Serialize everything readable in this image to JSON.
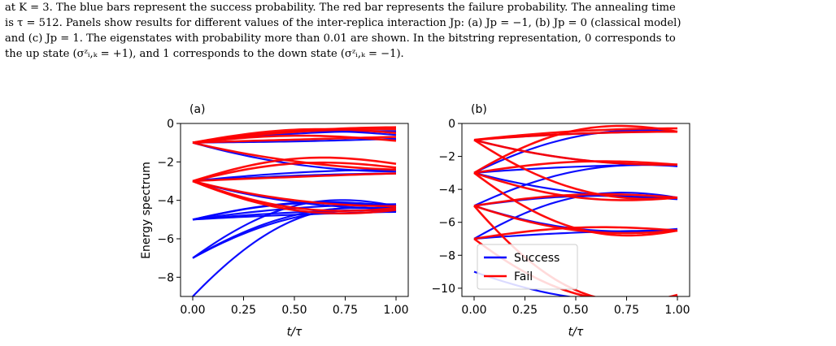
{
  "caption": {
    "lines": [
      "at K = 3. The blue bars represent the success probability. The red bar represents the failure probability. The annealing time",
      "is τ = 512. Panels show results for different values of the inter-replica interaction Jp: (a) Jp = −1, (b) Jp = 0 (classical model)",
      "and (c) Jp = 1. The eigenstates with probability more than 0.01 are shown. In the bitstring representation, 0 corresponds to",
      "the up state (σᶻᵢ,ₖ = +1), and 1 corresponds to the down state (σᶻᵢ,ₖ = −1)."
    ]
  },
  "chart_data": [
    {
      "type": "line",
      "panel_label": "(a)",
      "xlabel": "t/τ",
      "ylabel": "Energy spectrum",
      "xlim": [
        -0.06,
        1.06
      ],
      "ylim": [
        -9,
        0
      ],
      "xticks": [
        0.0,
        0.25,
        0.5,
        0.75,
        1.0
      ],
      "xtick_labels": [
        "0.00",
        "0.25",
        "0.50",
        "0.75",
        "1.00"
      ],
      "yticks": [
        0,
        -2,
        -4,
        -6,
        -8
      ],
      "ytick_labels": [
        "0",
        "−2",
        "−4",
        "−6",
        "−8"
      ],
      "series": [
        {
          "color": "#0000ff",
          "level_groups": [
            {
              "y0": -9,
              "ends": [
                -4.6
              ]
            },
            {
              "y0": -7,
              "ends": [
                -4.5,
                -4.3,
                -4.6
              ]
            },
            {
              "y0": -5,
              "ends": [
                -4.5,
                -4.3,
                -4.6,
                -4.4,
                -4.2
              ]
            },
            {
              "y0": -3,
              "ends": [
                -2.6,
                -4.4,
                -2.4
              ]
            },
            {
              "y0": -1,
              "ends": [
                -0.4,
                -0.6,
                -0.8,
                -2.5
              ]
            }
          ]
        },
        {
          "color": "#ff0000",
          "level_groups": [
            {
              "y0": -3,
              "ends": [
                -4.4,
                -4.3,
                -4.5,
                -2.3,
                -2.6,
                -2.1
              ]
            },
            {
              "y0": -1,
              "ends": [
                -0.3,
                -0.5,
                -0.7,
                -0.9,
                -0.2,
                -2.4
              ]
            }
          ]
        }
      ],
      "grid": false
    },
    {
      "type": "line",
      "panel_label": "(b)",
      "xlabel": "t/τ",
      "ylabel": "",
      "xlim": [
        -0.06,
        1.06
      ],
      "ylim": [
        -10.5,
        0
      ],
      "xticks": [
        0.0,
        0.25,
        0.5,
        0.75,
        1.0
      ],
      "xtick_labels": [
        "0.00",
        "0.25",
        "0.50",
        "0.75",
        "1.00"
      ],
      "yticks": [
        0,
        -2,
        -4,
        -6,
        -8,
        -10
      ],
      "ytick_labels": [
        "0",
        "−2",
        "−4",
        "−6",
        "−8",
        "−10"
      ],
      "series": [
        {
          "name": "Success",
          "color": "#0000ff",
          "level_groups": [
            {
              "y0": -9,
              "ends": [
                -10.6
              ]
            },
            {
              "y0": -7,
              "ends": [
                -6.5,
                -4.5
              ]
            },
            {
              "y0": -5,
              "ends": [
                -6.4,
                -4.6,
                -2.6
              ]
            },
            {
              "y0": -3,
              "ends": [
                -2.5,
                -4.5,
                -0.5
              ]
            },
            {
              "y0": -1,
              "ends": [
                -0.5,
                -2.5
              ]
            }
          ]
        },
        {
          "name": "Fail",
          "color": "#ff0000",
          "level_groups": [
            {
              "y0": -7,
              "ends": [
                -10.5,
                -6.5
              ]
            },
            {
              "y0": -5,
              "ends": [
                -6.5,
                -4.5,
                -10.4
              ]
            },
            {
              "y0": -3,
              "ends": [
                -4.5,
                -2.5,
                -6.5,
                -0.5
              ]
            },
            {
              "y0": -1,
              "ends": [
                -0.5,
                -2.5,
                -0.3,
                -4.5
              ]
            }
          ]
        }
      ],
      "legend": {
        "placement": "lower-left",
        "entries": [
          "Success",
          "Fail"
        ]
      },
      "grid": false
    }
  ]
}
